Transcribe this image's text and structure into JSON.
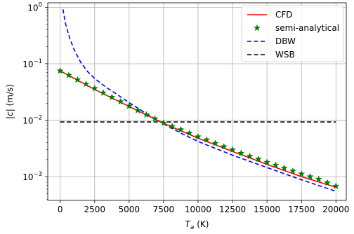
{
  "chart_data": {
    "type": "line",
    "title": "",
    "xlabel": "T",
    "xlabel_sub": "a",
    "xlabel_unit": " (K)",
    "ylabel_bar_left": "|",
    "ylabel_var": "c",
    "ylabel_bar_right": "|",
    "ylabel_unit": " (m/s)",
    "xlim": [
      -900,
      20750
    ],
    "ylim_log": [
      0.00038,
      1.2
    ],
    "yscale": "log",
    "grid": true,
    "legend_position": "top-right",
    "x_ticks": [
      0,
      2500,
      5000,
      7500,
      10000,
      12500,
      15000,
      17500,
      20000
    ],
    "x_tick_labels": [
      "0",
      "2500",
      "5000",
      "7500",
      "10000",
      "12500",
      "15000",
      "17500",
      "20000"
    ],
    "y_ticks": [
      0.001,
      0.01,
      0.1,
      1
    ],
    "y_tick_labels": [
      {
        "base": "10",
        "exp": "−3"
      },
      {
        "base": "10",
        "exp": "−2"
      },
      {
        "base": "10",
        "exp": "−1"
      },
      {
        "base": "10",
        "exp": "0"
      }
    ],
    "series": [
      {
        "name": "CFD",
        "style": "solid",
        "color": "#ff0000",
        "x": [
          0,
          2500,
          5000,
          7500,
          10000,
          12500,
          15000,
          17500,
          20000
        ],
        "y": [
          0.075,
          0.035,
          0.0175,
          0.0088,
          0.0048,
          0.0028,
          0.00165,
          0.001,
          0.00065
        ]
      },
      {
        "name": "semi-analytical",
        "style": "star",
        "color": "#008000",
        "x": [
          0,
          625,
          1250,
          1875,
          2500,
          3125,
          3750,
          4375,
          5000,
          5625,
          6250,
          6875,
          7500,
          8125,
          8750,
          9375,
          10000,
          10625,
          11250,
          11875,
          12500,
          13125,
          13750,
          14375,
          15000,
          15625,
          16250,
          16875,
          17500,
          18125,
          18750,
          19375,
          20000
        ],
        "y": [
          0.075,
          0.0625,
          0.052,
          0.0436,
          0.0365,
          0.0305,
          0.0255,
          0.0213,
          0.0178,
          0.0149,
          0.0125,
          0.0106,
          0.0089,
          0.0078,
          0.0068,
          0.0059,
          0.0051,
          0.0045,
          0.0039,
          0.0034,
          0.003,
          0.0026,
          0.0023,
          0.00205,
          0.0018,
          0.0016,
          0.00142,
          0.00126,
          0.00112,
          0.001,
          0.0009,
          0.00078,
          0.00068
        ]
      },
      {
        "name": "DBW",
        "style": "dashed",
        "color": "#0000ee",
        "x": [
          200,
          400,
          700,
          1000,
          1500,
          2000,
          2500,
          3000,
          3500,
          4000,
          5000,
          6000,
          7000,
          8000,
          9000,
          10000,
          12500,
          15000,
          17500,
          20000
        ],
        "y": [
          0.92,
          0.5,
          0.28,
          0.18,
          0.105,
          0.072,
          0.055,
          0.044,
          0.036,
          0.03,
          0.0205,
          0.0143,
          0.0101,
          0.0074,
          0.0055,
          0.0042,
          0.0024,
          0.00145,
          0.00088,
          0.00055
        ]
      },
      {
        "name": "WSB",
        "style": "dashed",
        "color": "#000000",
        "x": [
          0,
          20000
        ],
        "y": [
          0.0093,
          0.0093
        ]
      }
    ]
  }
}
